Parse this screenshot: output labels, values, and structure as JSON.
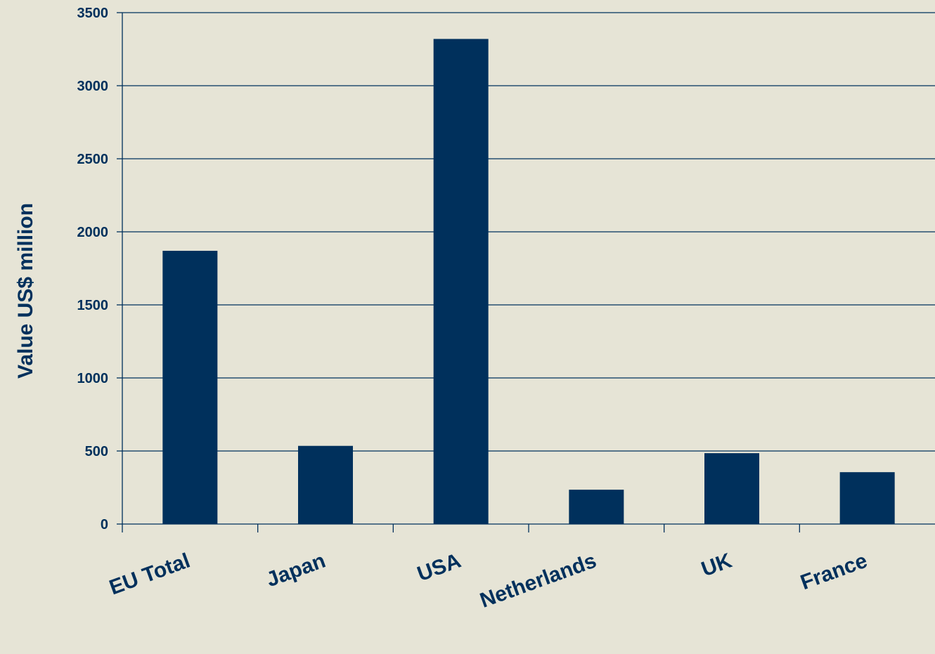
{
  "chart_data": {
    "type": "bar",
    "title": "",
    "xlabel": "",
    "ylabel": "Value US$ million",
    "ylim": [
      0,
      3500
    ],
    "yticks": [
      0,
      500,
      1000,
      1500,
      2000,
      2500,
      3000,
      3500
    ],
    "categories": [
      "EU Total",
      "Japan",
      "USA",
      "Netherlands",
      "UK",
      "France"
    ],
    "series": [
      {
        "values": [
          1870,
          535,
          3320,
          235,
          485,
          355
        ]
      }
    ],
    "grid": "horizontal",
    "colors": {
      "bar": "#00305c",
      "text": "#00305c",
      "axis": "#00305c",
      "background": "#e6e4d6"
    }
  }
}
